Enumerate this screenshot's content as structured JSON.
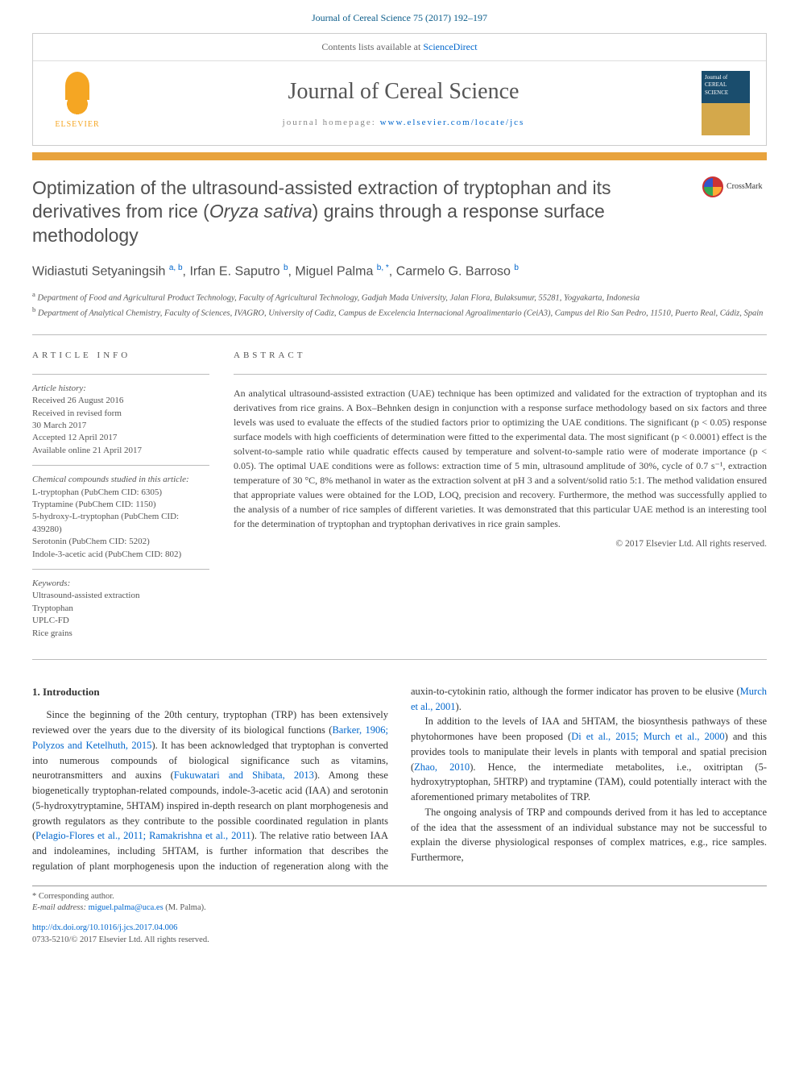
{
  "citation": "Journal of Cereal Science 75 (2017) 192–197",
  "header": {
    "contents_text": "Contents lists available at ",
    "contents_link": "ScienceDirect",
    "journal_name": "Journal of Cereal Science",
    "homepage_label": "journal homepage: ",
    "homepage_url": "www.elsevier.com/locate/jcs",
    "publisher": "ELSEVIER",
    "cover_text": "Journal of CEREAL SCIENCE"
  },
  "title": {
    "pre": "Optimization of the ultrasound-assisted extraction of tryptophan and its derivatives from rice (",
    "italic": "Oryza sativa",
    "post": ") grains through a response surface methodology"
  },
  "crossmark": "CrossMark",
  "authors_html": "Widiastuti Setyaningsih <sup>a, b</sup>, Irfan E. Saputro <sup>b</sup>, Miguel Palma <sup>b, *</sup>, Carmelo G. Barroso <sup>b</sup>",
  "affiliations": [
    {
      "sup": "a",
      "text": "Department of Food and Agricultural Product Technology, Faculty of Agricultural Technology, Gadjah Mada University, Jalan Flora, Bulaksumur, 55281, Yogyakarta, Indonesia"
    },
    {
      "sup": "b",
      "text": "Department of Analytical Chemistry, Faculty of Sciences, IVAGRO, University of Cadiz, Campus de Excelencia Internacional Agroalimentario (CeiA3), Campus del Rio San Pedro, 11510, Puerto Real, Cádiz, Spain"
    }
  ],
  "article_info": {
    "header": "ARTICLE INFO",
    "history_label": "Article history:",
    "history": [
      "Received 26 August 2016",
      "Received in revised form",
      "30 March 2017",
      "Accepted 12 April 2017",
      "Available online 21 April 2017"
    ],
    "compounds_label": "Chemical compounds studied in this article:",
    "compounds": [
      "L-tryptophan (PubChem CID: 6305)",
      "Tryptamine (PubChem CID: 1150)",
      "5-hydroxy-L-tryptophan (PubChem CID: 439280)",
      "Serotonin (PubChem CID: 5202)",
      "Indole-3-acetic acid (PubChem CID: 802)"
    ],
    "keywords_label": "Keywords:",
    "keywords": [
      "Ultrasound-assisted extraction",
      "Tryptophan",
      "UPLC-FD",
      "Rice grains"
    ]
  },
  "abstract": {
    "header": "ABSTRACT",
    "text": "An analytical ultrasound-assisted extraction (UAE) technique has been optimized and validated for the extraction of tryptophan and its derivatives from rice grains. A Box–Behnken design in conjunction with a response surface methodology based on six factors and three levels was used to evaluate the effects of the studied factors prior to optimizing the UAE conditions. The significant (p < 0.05) response surface models with high coefficients of determination were fitted to the experimental data. The most significant (p < 0.0001) effect is the solvent-to-sample ratio while quadratic effects caused by temperature and solvent-to-sample ratio were of moderate importance (p < 0.05). The optimal UAE conditions were as follows: extraction time of 5 min, ultrasound amplitude of 30%, cycle of 0.7 s⁻¹, extraction temperature of 30 °C, 8% methanol in water as the extraction solvent at pH 3 and a solvent/solid ratio 5:1. The method validation ensured that appropriate values were obtained for the LOD, LOQ, precision and recovery. Furthermore, the method was successfully applied to the analysis of a number of rice samples of different varieties. It was demonstrated that this particular UAE method is an interesting tool for the determination of tryptophan and tryptophan derivatives in rice grain samples.",
    "copyright": "© 2017 Elsevier Ltd. All rights reserved."
  },
  "body": {
    "section_heading": "1. Introduction",
    "col1_p1_a": "Since the beginning of the 20th century, tryptophan (TRP) has been extensively reviewed over the years due to the diversity of its biological functions (",
    "col1_p1_link1": "Barker, 1906; Polyzos and Ketelhuth, 2015",
    "col1_p1_b": "). It has been acknowledged that tryptophan is converted into numerous compounds of biological significance such as vitamins, neurotransmitters and auxins (",
    "col1_p1_link2": "Fukuwatari and Shibata, 2013",
    "col1_p1_c": "). Among these biogenetically tryptophan-related compounds, indole-3-acetic acid (IAA) and serotonin (5-hydroxytryptamine, 5HTAM) inspired in-depth research on plant morphogenesis and growth regulators as they contribute to the possible coordinated regulation in plants (",
    "col1_p1_link3": "Pelagio-Flores et al., 2011; Ramakrishna et al.,",
    "col2_p1_link1": "2011",
    "col2_p1_a": "). The relative ratio between IAA and indoleamines, including 5HTAM, is further information that describes the regulation of plant morphogenesis upon the induction of regeneration along with the auxin-to-cytokinin ratio, although the former indicator has proven to be elusive (",
    "col2_p1_link2": "Murch et al., 2001",
    "col2_p1_b": ").",
    "col2_p2_a": "In addition to the levels of IAA and 5HTAM, the biosynthesis pathways of these phytohormones have been proposed (",
    "col2_p2_link1": "Di et al., 2015; Murch et al., 2000",
    "col2_p2_b": ") and this provides tools to manipulate their levels in plants with temporal and spatial precision (",
    "col2_p2_link2": "Zhao, 2010",
    "col2_p2_c": "). Hence, the intermediate metabolites, i.e., oxitriptan (5-hydroxytryptophan, 5HTRP) and tryptamine (TAM), could potentially interact with the aforementioned primary metabolites of TRP.",
    "col2_p3": "The ongoing analysis of TRP and compounds derived from it has led to acceptance of the idea that the assessment of an individual substance may not be successful to explain the diverse physiological responses of complex matrices, e.g., rice samples. Furthermore,"
  },
  "footer": {
    "corresponding": "* Corresponding author.",
    "email_label": "E-mail address: ",
    "email": "miguel.palma@uca.es",
    "email_suffix": " (M. Palma).",
    "doi": "http://dx.doi.org/10.1016/j.jcs.2017.04.006",
    "issn_line": "0733-5210/© 2017 Elsevier Ltd. All rights reserved."
  },
  "colors": {
    "accent_orange": "#e8a33d",
    "link_blue": "#0066cc",
    "header_blue": "#0a5c8a",
    "text_gray": "#505050"
  }
}
